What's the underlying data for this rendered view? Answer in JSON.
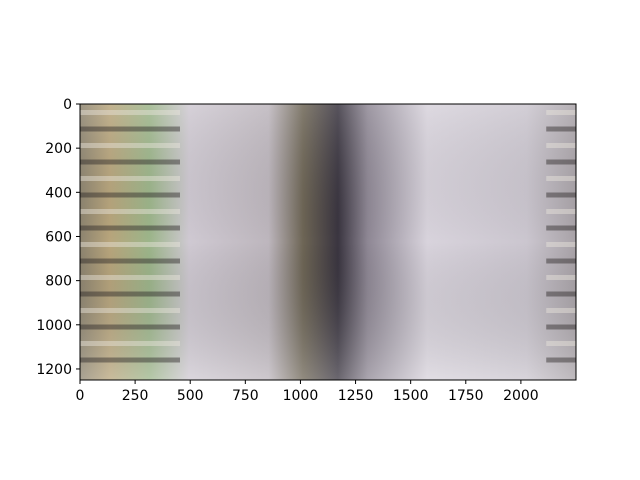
{
  "chart_data": {
    "type": "heatmap",
    "title": "",
    "xlabel": "",
    "ylabel": "",
    "xlim": [
      0,
      2250
    ],
    "ylim": [
      1250,
      0
    ],
    "x_ticks": [
      0,
      250,
      500,
      750,
      1000,
      1250,
      1500,
      1750,
      2000
    ],
    "y_ticks": [
      0,
      200,
      400,
      600,
      800,
      1000,
      1200
    ],
    "x_tick_labels": [
      "0",
      "250",
      "500",
      "750",
      "1000",
      "1250",
      "1500",
      "1750",
      "2000"
    ],
    "y_tick_labels": [
      "0",
      "200",
      "400",
      "600",
      "800",
      "1000",
      "1200"
    ],
    "content": "image",
    "colors": {
      "stone": "#cfc9d2",
      "dark_band": "#3a3540",
      "wood": "#b8a57c",
      "foliage": "#9cb58a",
      "edge_shadow": "#2b2626"
    }
  }
}
